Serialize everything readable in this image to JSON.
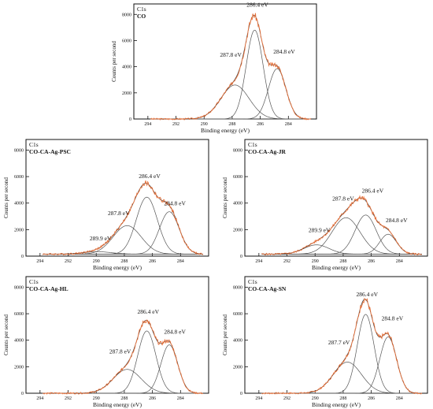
{
  "chart_data": [
    {
      "type": "line",
      "region": "C1s",
      "title": "CO",
      "xlabel": "Binding energy (eV)",
      "ylabel": "Counts per second",
      "xlim": [
        295,
        282
      ],
      "ylim": [
        0,
        8800
      ],
      "xticks": [
        294,
        292,
        290,
        288,
        286,
        284
      ],
      "yticks": [
        0,
        2000,
        4000,
        6000,
        8000
      ],
      "background": 0,
      "series": [
        {
          "center": 287.8,
          "height": 2600,
          "width": 1.0
        },
        {
          "center": 286.4,
          "height": 6800,
          "width": 0.6
        },
        {
          "center": 284.8,
          "height": 3850,
          "width": 0.62
        }
      ],
      "annotations": [
        {
          "text": "287.8 eV",
          "x": 288.1,
          "y": 4750
        },
        {
          "text": "286.4 eV",
          "x": 286.2,
          "y": 8600
        },
        {
          "text": "284.8 eV",
          "x": 284.3,
          "y": 5000
        }
      ]
    },
    {
      "type": "line",
      "region": "C1s",
      "title": "CO-CA-Ag-PSC",
      "xlabel": "Binding energy (eV)",
      "ylabel": "Counts per second",
      "xlim": [
        295,
        282
      ],
      "ylim": [
        0,
        8800
      ],
      "xticks": [
        294,
        292,
        290,
        288,
        286,
        284
      ],
      "yticks": [
        0,
        2000,
        4000,
        6000,
        8000
      ],
      "background": 150,
      "series": [
        {
          "center": 289.9,
          "height": 180,
          "width": 1.0
        },
        {
          "center": 287.8,
          "height": 2150,
          "width": 1.0
        },
        {
          "center": 286.4,
          "height": 4300,
          "width": 0.75
        },
        {
          "center": 284.8,
          "height": 3200,
          "width": 0.7
        }
      ],
      "annotations": [
        {
          "text": "289.9 eV",
          "x": 289.7,
          "y": 1200
        },
        {
          "text": "287.8 eV",
          "x": 288.4,
          "y": 3100
        },
        {
          "text": "286.4 eV",
          "x": 286.2,
          "y": 5900
        },
        {
          "text": "284.8 eV",
          "x": 284.4,
          "y": 3850
        }
      ]
    },
    {
      "type": "line",
      "region": "C1s",
      "title": "CO-CA-Ag-JR",
      "xlabel": "Binding energy (eV)",
      "ylabel": "Counts per second",
      "xlim": [
        295,
        282
      ],
      "ylim": [
        0,
        8800
      ],
      "xticks": [
        294,
        292,
        290,
        288,
        286,
        284
      ],
      "yticks": [
        0,
        2000,
        4000,
        6000,
        8000
      ],
      "background": 150,
      "series": [
        {
          "center": 289.9,
          "height": 700,
          "width": 0.9
        },
        {
          "center": 287.8,
          "height": 2750,
          "width": 1.0
        },
        {
          "center": 286.4,
          "height": 2950,
          "width": 0.75
        },
        {
          "center": 284.8,
          "height": 1500,
          "width": 0.6
        }
      ],
      "annotations": [
        {
          "text": "289.9 eV",
          "x": 289.7,
          "y": 1800
        },
        {
          "text": "287.8 eV",
          "x": 288.0,
          "y": 4200
        },
        {
          "text": "286.4 eV",
          "x": 285.9,
          "y": 4800
        },
        {
          "text": "284.8 eV",
          "x": 284.2,
          "y": 2550
        }
      ]
    },
    {
      "type": "line",
      "region": "C1s",
      "title": "CO-CA-Ag-HL",
      "xlabel": "Binding energy (eV)",
      "ylabel": "Counts per second",
      "xlim": [
        295,
        282
      ],
      "ylim": [
        0,
        8800
      ],
      "xticks": [
        294,
        292,
        290,
        288,
        286,
        284
      ],
      "yticks": [
        0,
        2000,
        4000,
        6000,
        8000
      ],
      "background": 0,
      "series": [
        {
          "center": 287.8,
          "height": 1800,
          "width": 1.0
        },
        {
          "center": 286.4,
          "height": 4700,
          "width": 0.65
        },
        {
          "center": 284.8,
          "height": 3650,
          "width": 0.6
        }
      ],
      "annotations": [
        {
          "text": "287.8 eV",
          "x": 288.3,
          "y": 3000
        },
        {
          "text": "286.4 eV",
          "x": 286.3,
          "y": 6000
        },
        {
          "text": "284.8 eV",
          "x": 284.4,
          "y": 4500
        }
      ]
    },
    {
      "type": "line",
      "region": "C1s",
      "title": "CO-CA-Ag-SN",
      "xlabel": "Binding energy (eV)",
      "ylabel": "Counts per second",
      "xlim": [
        295,
        282
      ],
      "ylim": [
        0,
        8800
      ],
      "xticks": [
        294,
        292,
        290,
        288,
        286,
        284
      ],
      "yticks": [
        0,
        2000,
        4000,
        6000,
        8000
      ],
      "background": 0,
      "series": [
        {
          "center": 287.7,
          "height": 2350,
          "width": 1.0
        },
        {
          "center": 286.4,
          "height": 5950,
          "width": 0.6
        },
        {
          "center": 284.8,
          "height": 4250,
          "width": 0.6
        }
      ],
      "annotations": [
        {
          "text": "287.7 eV",
          "x": 288.3,
          "y": 3700
        },
        {
          "text": "286.4 eV",
          "x": 286.3,
          "y": 7300
        },
        {
          "text": "284.8 eV",
          "x": 284.5,
          "y": 5500
        }
      ]
    }
  ],
  "colors": {
    "envelope": "#e8713a",
    "component": "#555555",
    "frame": "#111111"
  }
}
